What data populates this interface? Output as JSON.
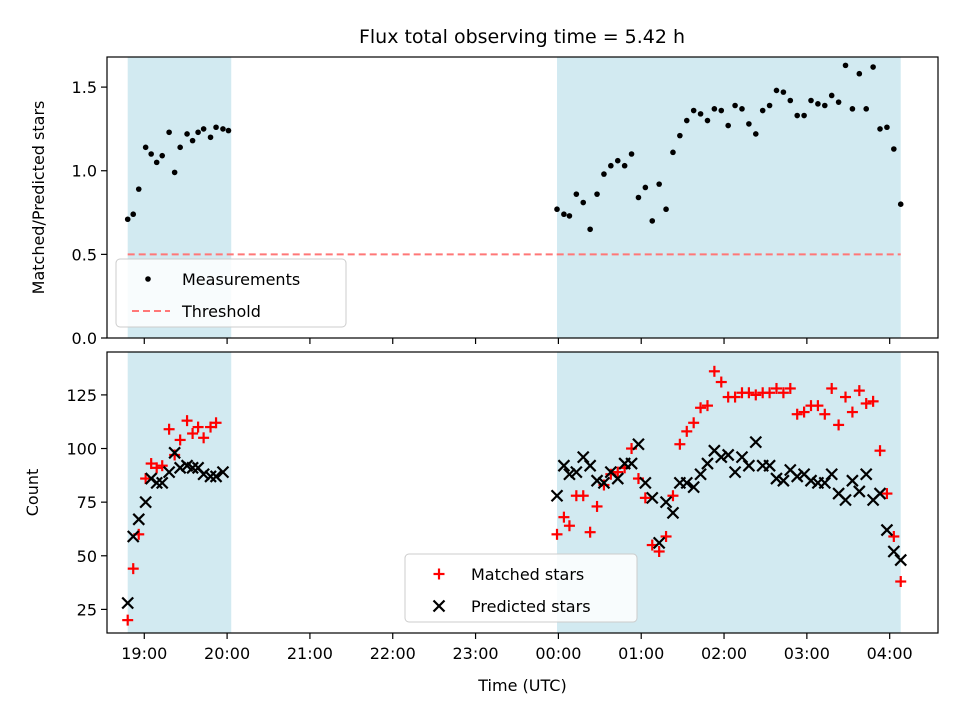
{
  "title": "Flux total observing time = 5.42 h",
  "colors": {
    "span": "#add8e6",
    "measurements": "#000000",
    "threshold": "#ff7777",
    "matched": "#ff0000",
    "predicted": "#000000"
  },
  "xaxis": {
    "label": "Time (UTC)",
    "ticks": [
      {
        "t": 19.0,
        "label": "19:00"
      },
      {
        "t": 20.0,
        "label": "20:00"
      },
      {
        "t": 21.0,
        "label": "21:00"
      },
      {
        "t": 22.0,
        "label": "22:00"
      },
      {
        "t": 23.0,
        "label": "23:00"
      },
      {
        "t": 24.0,
        "label": "00:00"
      },
      {
        "t": 25.0,
        "label": "01:00"
      },
      {
        "t": 26.0,
        "label": "02:00"
      },
      {
        "t": 27.0,
        "label": "03:00"
      },
      {
        "t": 28.0,
        "label": "04:00"
      }
    ]
  },
  "chart_data": [
    {
      "type": "scatter",
      "ylabel": "Matched/Predicted stars",
      "xlim": [
        "18:33",
        "04:35"
      ],
      "ylim": [
        0,
        1.68
      ],
      "yticks": [
        "0.0",
        "0.5",
        "1.0",
        "1.5"
      ],
      "observing_spans": [
        [
          "18:48",
          "20:03"
        ],
        [
          "23:59",
          "04:08"
        ]
      ],
      "threshold": 0.5,
      "legend": {
        "position": "lower-left",
        "entries": [
          "Measurements",
          "Threshold"
        ]
      },
      "series": [
        {
          "name": "Measurements",
          "marker": "dot",
          "points": [
            [
              "18:48",
              0.71
            ],
            [
              "18:52",
              0.74
            ],
            [
              "18:56",
              0.89
            ],
            [
              "19:01",
              1.14
            ],
            [
              "19:05",
              1.1
            ],
            [
              "19:09",
              1.05
            ],
            [
              "19:13",
              1.09
            ],
            [
              "19:18",
              1.23
            ],
            [
              "19:22",
              0.99
            ],
            [
              "19:26",
              1.14
            ],
            [
              "19:31",
              1.22
            ],
            [
              "19:35",
              1.18
            ],
            [
              "19:39",
              1.23
            ],
            [
              "19:43",
              1.25
            ],
            [
              "19:48",
              1.2
            ],
            [
              "19:52",
              1.26
            ],
            [
              "19:57",
              1.25
            ],
            [
              "20:01",
              1.24
            ],
            [
              "23:59",
              0.77
            ],
            [
              "00:04",
              0.74
            ],
            [
              "00:08",
              0.73
            ],
            [
              "00:13",
              0.86
            ],
            [
              "00:18",
              0.81
            ],
            [
              "00:23",
              0.65
            ],
            [
              "00:28",
              0.86
            ],
            [
              "00:33",
              0.98
            ],
            [
              "00:38",
              1.03
            ],
            [
              "00:43",
              1.06
            ],
            [
              "00:48",
              1.03
            ],
            [
              "00:53",
              1.1
            ],
            [
              "00:58",
              0.84
            ],
            [
              "01:03",
              0.9
            ],
            [
              "01:08",
              0.7
            ],
            [
              "01:13",
              0.92
            ],
            [
              "01:18",
              0.77
            ],
            [
              "01:23",
              1.11
            ],
            [
              "01:28",
              1.21
            ],
            [
              "01:33",
              1.3
            ],
            [
              "01:38",
              1.36
            ],
            [
              "01:43",
              1.34
            ],
            [
              "01:48",
              1.3
            ],
            [
              "01:53",
              1.37
            ],
            [
              "01:58",
              1.36
            ],
            [
              "02:03",
              1.27
            ],
            [
              "02:08",
              1.39
            ],
            [
              "02:13",
              1.37
            ],
            [
              "02:18",
              1.28
            ],
            [
              "02:23",
              1.22
            ],
            [
              "02:28",
              1.36
            ],
            [
              "02:33",
              1.39
            ],
            [
              "02:38",
              1.48
            ],
            [
              "02:43",
              1.47
            ],
            [
              "02:48",
              1.42
            ],
            [
              "02:53",
              1.33
            ],
            [
              "02:58",
              1.33
            ],
            [
              "03:03",
              1.42
            ],
            [
              "03:08",
              1.4
            ],
            [
              "03:13",
              1.39
            ],
            [
              "03:18",
              1.45
            ],
            [
              "03:23",
              1.41
            ],
            [
              "03:28",
              1.63
            ],
            [
              "03:33",
              1.37
            ],
            [
              "03:38",
              1.58
            ],
            [
              "03:43",
              1.37
            ],
            [
              "03:48",
              1.62
            ],
            [
              "03:53",
              1.25
            ],
            [
              "03:58",
              1.26
            ],
            [
              "04:03",
              1.13
            ],
            [
              "04:08",
              0.8
            ]
          ]
        }
      ]
    },
    {
      "type": "scatter",
      "ylabel": "Count",
      "xlim": [
        "18:33",
        "04:35"
      ],
      "ylim": [
        14,
        145
      ],
      "yticks": [
        "25",
        "50",
        "75",
        "100",
        "125"
      ],
      "observing_spans": [
        [
          "18:48",
          "20:03"
        ],
        [
          "23:59",
          "04:08"
        ]
      ],
      "legend": {
        "position": "lower-center",
        "entries": [
          "Matched stars",
          "Predicted stars"
        ]
      },
      "series": [
        {
          "name": "Matched stars",
          "marker": "plus",
          "points": [
            [
              "18:48",
              20
            ],
            [
              "18:52",
              44
            ],
            [
              "18:56",
              60
            ],
            [
              "19:01",
              86
            ],
            [
              "19:05",
              93
            ],
            [
              "19:09",
              91
            ],
            [
              "19:13",
              92
            ],
            [
              "19:18",
              109
            ],
            [
              "19:22",
              97
            ],
            [
              "19:26",
              104
            ],
            [
              "19:31",
              113
            ],
            [
              "19:35",
              107
            ],
            [
              "19:39",
              110
            ],
            [
              "19:43",
              105
            ],
            [
              "19:48",
              110
            ],
            [
              "19:52",
              112
            ],
            [
              "23:59",
              60
            ],
            [
              "00:04",
              68
            ],
            [
              "00:08",
              64
            ],
            [
              "00:13",
              78
            ],
            [
              "00:18",
              78
            ],
            [
              "00:23",
              61
            ],
            [
              "00:28",
              73
            ],
            [
              "00:33",
              83
            ],
            [
              "00:38",
              88
            ],
            [
              "00:43",
              89
            ],
            [
              "00:48",
              91
            ],
            [
              "00:53",
              100
            ],
            [
              "00:58",
              86
            ],
            [
              "01:03",
              77
            ],
            [
              "01:08",
              55
            ],
            [
              "01:13",
              52
            ],
            [
              "01:18",
              59
            ],
            [
              "01:23",
              78
            ],
            [
              "01:28",
              102
            ],
            [
              "01:33",
              108
            ],
            [
              "01:38",
              112
            ],
            [
              "01:43",
              119
            ],
            [
              "01:48",
              120
            ],
            [
              "01:53",
              136
            ],
            [
              "01:58",
              131
            ],
            [
              "02:03",
              124
            ],
            [
              "02:08",
              124
            ],
            [
              "02:13",
              126
            ],
            [
              "02:18",
              126
            ],
            [
              "02:23",
              125
            ],
            [
              "02:28",
              126
            ],
            [
              "02:33",
              126
            ],
            [
              "02:38",
              128
            ],
            [
              "02:43",
              126
            ],
            [
              "02:48",
              128
            ],
            [
              "02:53",
              116
            ],
            [
              "02:58",
              117
            ],
            [
              "03:03",
              120
            ],
            [
              "03:08",
              120
            ],
            [
              "03:13",
              116
            ],
            [
              "03:18",
              128
            ],
            [
              "03:23",
              111
            ],
            [
              "03:28",
              124
            ],
            [
              "03:33",
              117
            ],
            [
              "03:38",
              127
            ],
            [
              "03:43",
              121
            ],
            [
              "03:48",
              122
            ],
            [
              "03:53",
              99
            ],
            [
              "03:58",
              79
            ],
            [
              "04:03",
              59
            ],
            [
              "04:08",
              38
            ]
          ]
        },
        {
          "name": "Predicted stars",
          "marker": "x",
          "points": [
            [
              "18:48",
              28
            ],
            [
              "18:52",
              59
            ],
            [
              "18:56",
              67
            ],
            [
              "19:01",
              75
            ],
            [
              "19:05",
              86
            ],
            [
              "19:09",
              84
            ],
            [
              "19:13",
              84
            ],
            [
              "19:18",
              89
            ],
            [
              "19:22",
              98
            ],
            [
              "19:26",
              91
            ],
            [
              "19:31",
              92
            ],
            [
              "19:35",
              91
            ],
            [
              "19:39",
              91
            ],
            [
              "19:43",
              88
            ],
            [
              "19:48",
              87
            ],
            [
              "19:52",
              87
            ],
            [
              "19:57",
              89
            ],
            [
              "23:59",
              78
            ],
            [
              "00:04",
              92
            ],
            [
              "00:08",
              88
            ],
            [
              "00:13",
              89
            ],
            [
              "00:18",
              96
            ],
            [
              "00:23",
              92
            ],
            [
              "00:28",
              85
            ],
            [
              "00:33",
              84
            ],
            [
              "00:38",
              89
            ],
            [
              "00:43",
              86
            ],
            [
              "00:48",
              93
            ],
            [
              "00:53",
              93
            ],
            [
              "00:58",
              102
            ],
            [
              "01:03",
              84
            ],
            [
              "01:08",
              77
            ],
            [
              "01:13",
              56
            ],
            [
              "01:18",
              75
            ],
            [
              "01:23",
              70
            ],
            [
              "01:28",
              84
            ],
            [
              "01:33",
              84
            ],
            [
              "01:38",
              82
            ],
            [
              "01:43",
              88
            ],
            [
              "01:48",
              93
            ],
            [
              "01:53",
              99
            ],
            [
              "01:58",
              96
            ],
            [
              "02:03",
              97
            ],
            [
              "02:08",
              89
            ],
            [
              "02:13",
              96
            ],
            [
              "02:18",
              92
            ],
            [
              "02:23",
              103
            ],
            [
              "02:28",
              92
            ],
            [
              "02:33",
              92
            ],
            [
              "02:38",
              86
            ],
            [
              "02:43",
              85
            ],
            [
              "02:48",
              90
            ],
            [
              "02:53",
              87
            ],
            [
              "02:58",
              88
            ],
            [
              "03:03",
              85
            ],
            [
              "03:08",
              84
            ],
            [
              "03:13",
              84
            ],
            [
              "03:18",
              88
            ],
            [
              "03:23",
              79
            ],
            [
              "03:28",
              76
            ],
            [
              "03:33",
              85
            ],
            [
              "03:38",
              80
            ],
            [
              "03:43",
              88
            ],
            [
              "03:48",
              76
            ],
            [
              "03:53",
              79
            ],
            [
              "03:58",
              62
            ],
            [
              "04:03",
              52
            ],
            [
              "04:08",
              48
            ]
          ]
        }
      ]
    }
  ]
}
